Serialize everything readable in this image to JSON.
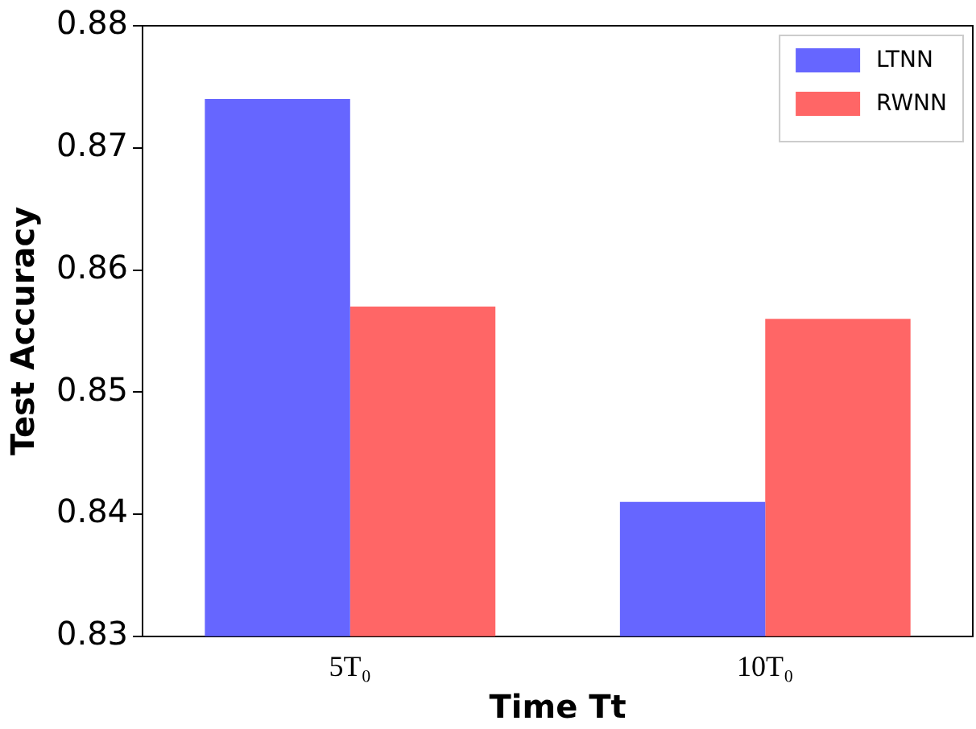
{
  "chart_data": {
    "type": "bar",
    "xlabel": "Time Tt",
    "ylabel": "Test Accuracy",
    "categories": [
      "5T₀",
      "10T₀"
    ],
    "series": [
      {
        "name": "LTNN",
        "color": "#6666ff",
        "values": [
          0.874,
          0.841
        ]
      },
      {
        "name": "RWNN",
        "color": "#ff6666",
        "values": [
          0.857,
          0.856
        ]
      }
    ],
    "ylim": [
      0.83,
      0.88
    ],
    "yticks": [
      0.83,
      0.84,
      0.85,
      0.86,
      0.87,
      0.88
    ],
    "grid": false,
    "legend": "top right"
  }
}
